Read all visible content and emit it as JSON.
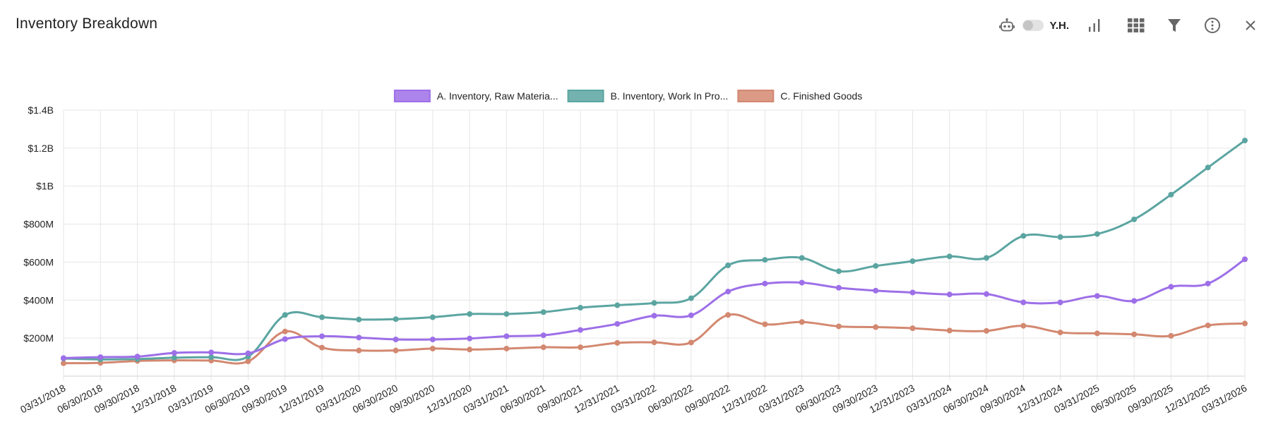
{
  "header": {
    "title": "Inventory Breakdown",
    "toggle_label": "Y.H."
  },
  "icons": {
    "robot": "robot-icon",
    "bar_chart": "bar-chart-icon",
    "grid": "grid-icon",
    "filter": "filter-icon",
    "info": "info-icon",
    "close": "close-icon"
  },
  "chart_data": {
    "type": "line",
    "ylim": [
      0,
      1400000000
    ],
    "y_ticks": [
      {
        "value": 200000000,
        "label": "$200M"
      },
      {
        "value": 400000000,
        "label": "$400M"
      },
      {
        "value": 600000000,
        "label": "$600M"
      },
      {
        "value": 800000000,
        "label": "$800M"
      },
      {
        "value": 1000000000,
        "label": "$1B"
      },
      {
        "value": 1200000000,
        "label": "$1.2B"
      },
      {
        "value": 1400000000,
        "label": "$1.4B"
      }
    ],
    "legend_position": "top-center",
    "grid": true,
    "x": [
      "03/31/2018",
      "06/30/2018",
      "09/30/2018",
      "12/31/2018",
      "03/31/2019",
      "06/30/2019",
      "09/30/2019",
      "12/31/2019",
      "03/31/2020",
      "06/30/2020",
      "09/30/2020",
      "12/31/2020",
      "03/31/2021",
      "06/30/2021",
      "09/30/2021",
      "12/31/2021",
      "03/31/2022",
      "06/30/2022",
      "09/30/2022",
      "12/31/2022",
      "03/31/2023",
      "06/30/2023",
      "09/30/2023",
      "12/31/2023",
      "03/31/2024",
      "06/30/2024",
      "09/30/2024",
      "12/31/2024",
      "03/31/2025",
      "06/30/2025",
      "09/30/2025",
      "12/31/2025",
      "03/31/2026"
    ],
    "series": [
      {
        "name": "A. Inventory, Raw Materia...",
        "color": "#9d6fe8",
        "values": [
          95000000,
          100000000,
          103000000,
          122000000,
          125000000,
          120000000,
          195000000,
          210000000,
          203000000,
          193000000,
          193000000,
          198000000,
          210000000,
          215000000,
          243000000,
          275000000,
          318000000,
          320000000,
          445000000,
          487000000,
          492000000,
          465000000,
          450000000,
          440000000,
          430000000,
          432000000,
          388000000,
          388000000,
          422000000,
          396000000,
          470000000,
          487000000,
          615000000
        ]
      },
      {
        "name": "B. Inventory, Work In Pro...",
        "color": "#5ba5a1",
        "values": [
          93000000,
          88000000,
          90000000,
          97000000,
          100000000,
          103000000,
          322000000,
          310000000,
          298000000,
          300000000,
          310000000,
          327000000,
          327000000,
          337000000,
          360000000,
          373000000,
          385000000,
          410000000,
          583000000,
          612000000,
          622000000,
          552000000,
          580000000,
          605000000,
          630000000,
          622000000,
          738000000,
          732000000,
          748000000,
          825000000,
          955000000,
          1098000000,
          1240000000
        ]
      },
      {
        "name": "C. Finished Goods",
        "color": "#d38870",
        "values": [
          68000000,
          70000000,
          80000000,
          83000000,
          82000000,
          78000000,
          235000000,
          150000000,
          135000000,
          135000000,
          145000000,
          140000000,
          145000000,
          152000000,
          152000000,
          175000000,
          178000000,
          177000000,
          322000000,
          273000000,
          285000000,
          262000000,
          258000000,
          252000000,
          240000000,
          238000000,
          265000000,
          230000000,
          225000000,
          220000000,
          212000000,
          267000000,
          277000000
        ]
      }
    ]
  }
}
